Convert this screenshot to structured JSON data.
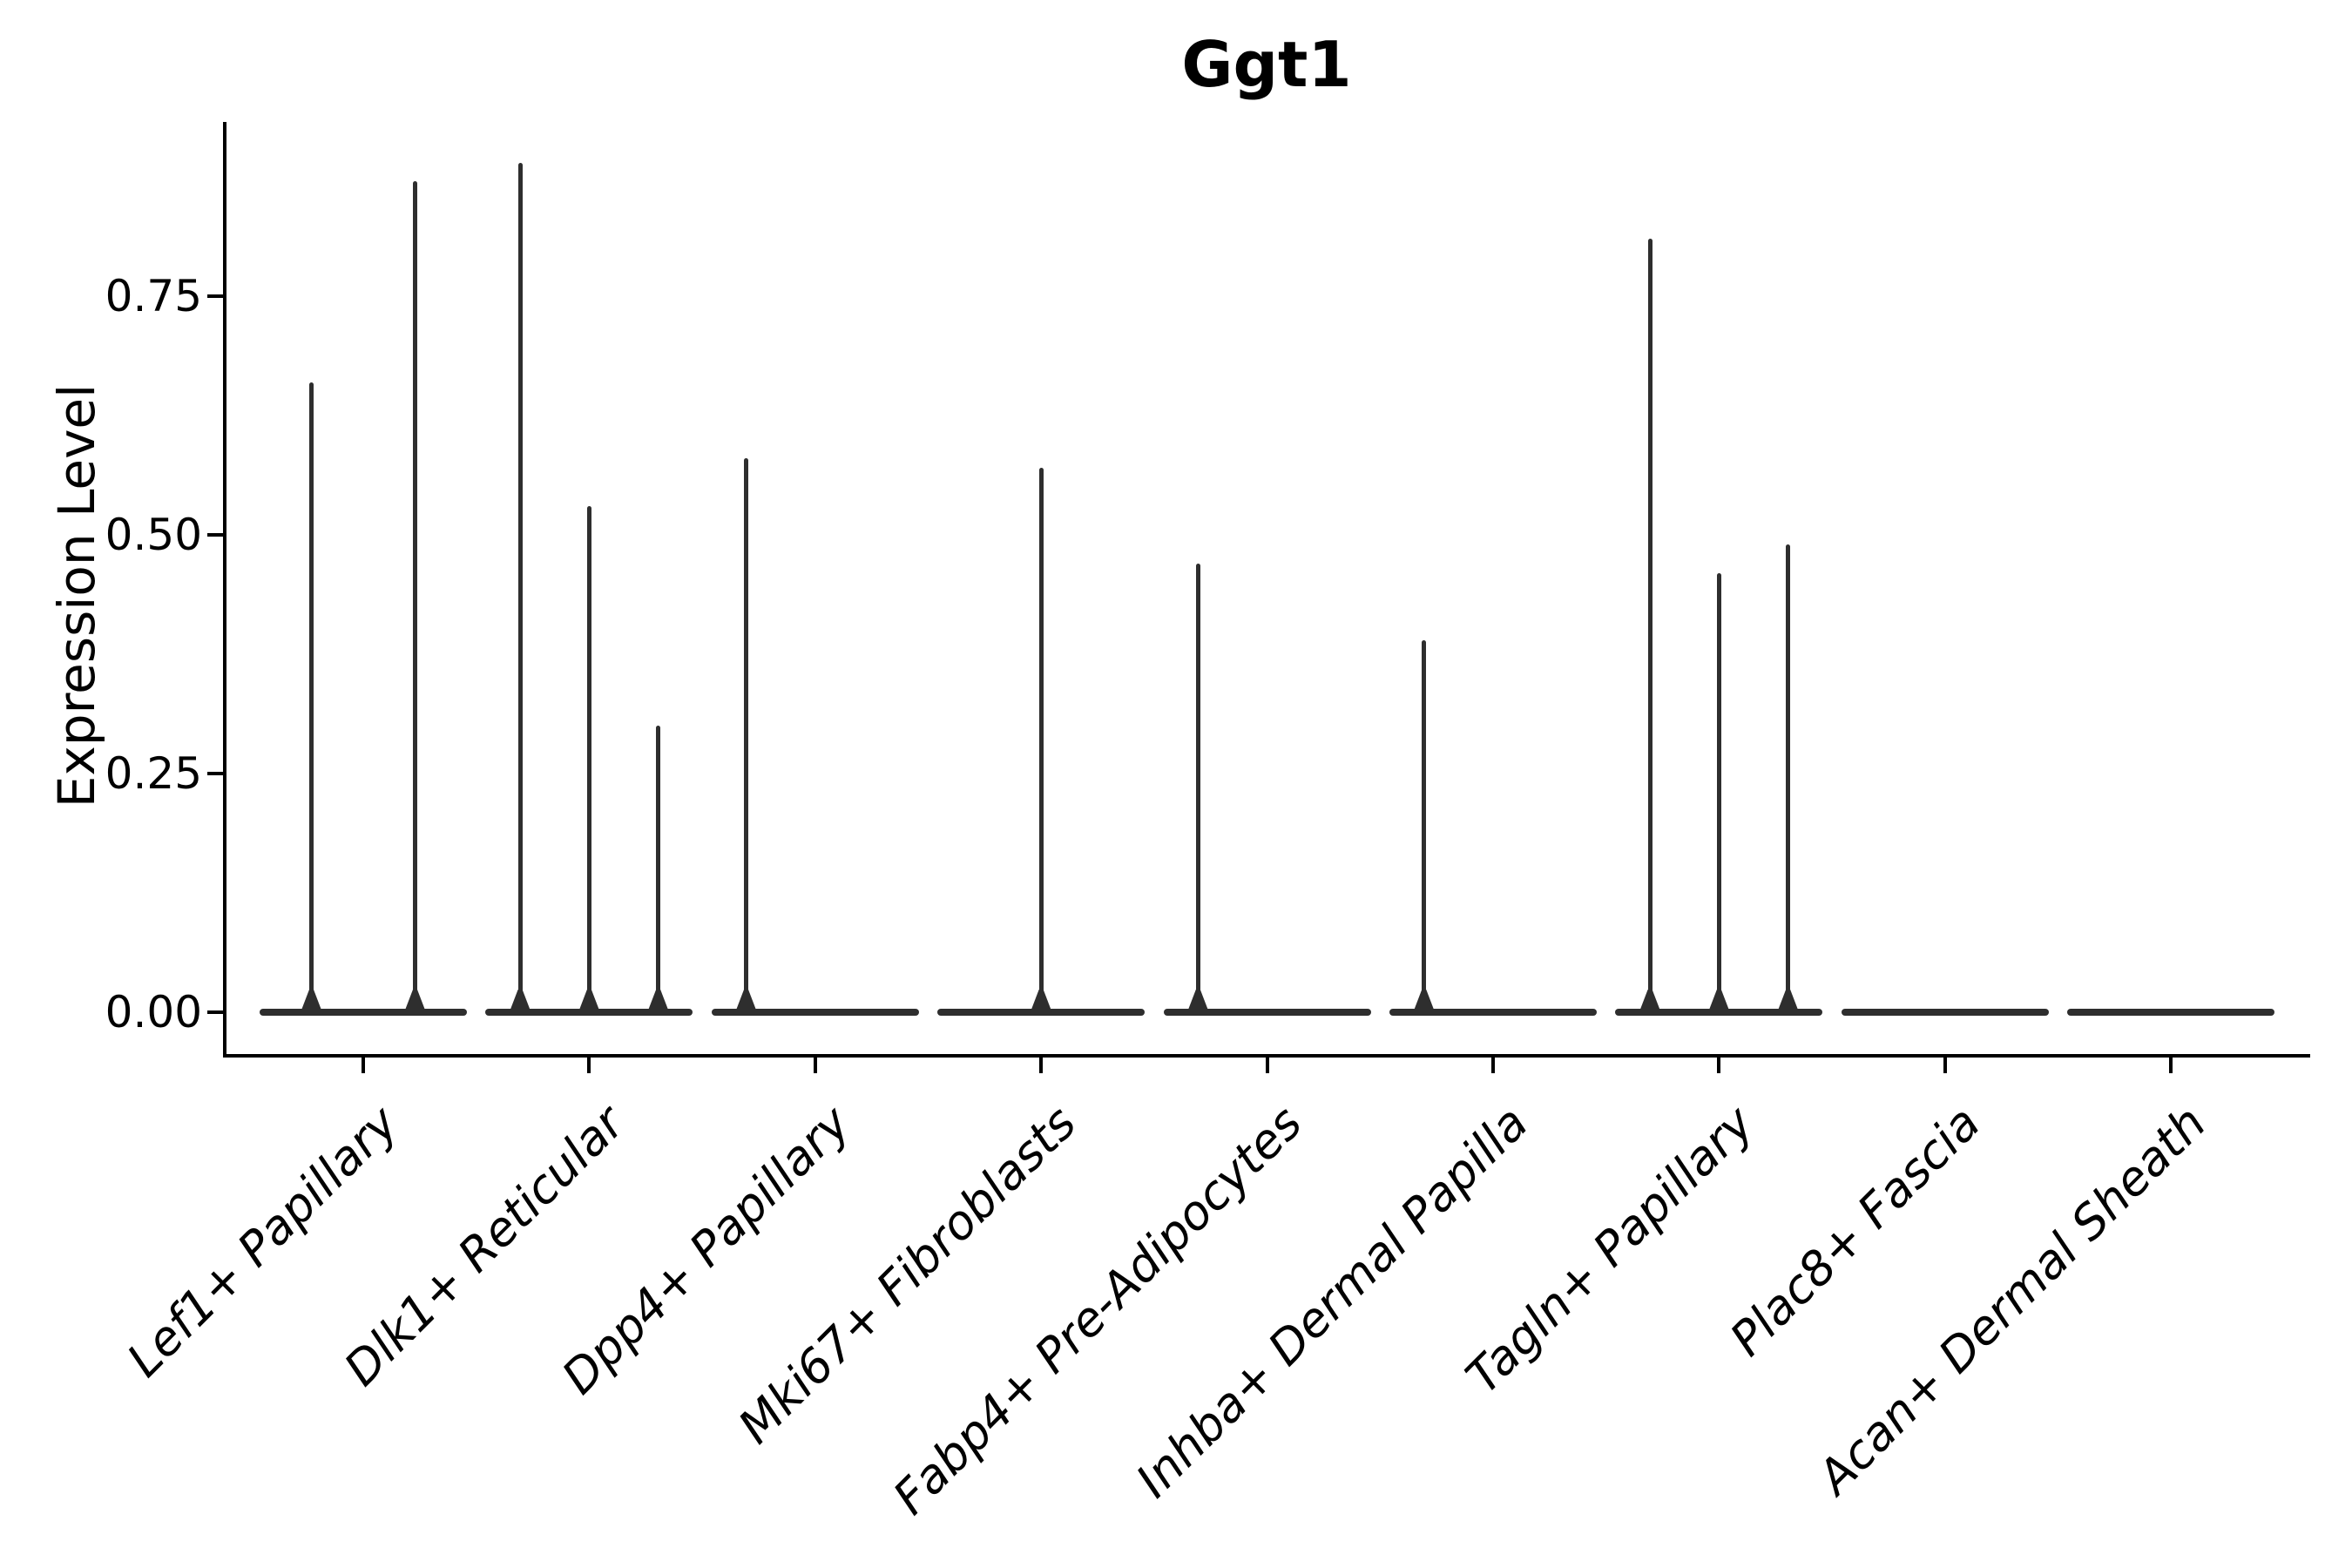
{
  "chart_data": {
    "type": "violin",
    "title": "Ggt1",
    "xlabel": "",
    "ylabel": "Expression Level",
    "y_ticks": [
      {
        "value": 0.0,
        "label": "0.00"
      },
      {
        "value": 0.25,
        "label": "0.25"
      },
      {
        "value": 0.5,
        "label": "0.50"
      },
      {
        "value": 0.75,
        "label": "0.75"
      }
    ],
    "ylim": [
      0,
      0.93
    ],
    "grid": false,
    "legend": "none",
    "categories": [
      "Lef1+ Papillary",
      "Dlk1+ Reticular",
      "Dpp4+ Papillary",
      "Mki67+ Fibroblasts",
      "Fabp4+ Pre-Adipocytes",
      "Inhba+ Dermal Papilla",
      "Tagln+ Papillary",
      "Plac8+ Fascia",
      "Acan+ Dermal Sheath"
    ],
    "violins": [
      {
        "category": "Lef1+ Papillary",
        "baseline_value": 0,
        "spikes": [
          {
            "pos": 0.25,
            "max": 0.66
          },
          {
            "pos": 0.75,
            "max": 0.87
          }
        ]
      },
      {
        "category": "Dlk1+ Reticular",
        "baseline_value": 0,
        "spikes": [
          {
            "pos": 0.167,
            "max": 0.89
          },
          {
            "pos": 0.5,
            "max": 0.53
          },
          {
            "pos": 0.833,
            "max": 0.3
          }
        ]
      },
      {
        "category": "Dpp4+ Papillary",
        "baseline_value": 0,
        "spikes": [
          {
            "pos": 0.167,
            "max": 0.58
          }
        ]
      },
      {
        "category": "Mki67+ Fibroblasts",
        "baseline_value": 0,
        "spikes": [
          {
            "pos": 0.5,
            "max": 0.57
          }
        ]
      },
      {
        "category": "Fabp4+ Pre-Adipocytes",
        "baseline_value": 0,
        "spikes": [
          {
            "pos": 0.167,
            "max": 0.47
          }
        ]
      },
      {
        "category": "Inhba+ Dermal Papilla",
        "baseline_value": 0,
        "spikes": [
          {
            "pos": 0.167,
            "max": 0.39
          }
        ]
      },
      {
        "category": "Tagln+ Papillary",
        "baseline_value": 0,
        "spikes": [
          {
            "pos": 0.167,
            "max": 0.81
          },
          {
            "pos": 0.5,
            "max": 0.46
          },
          {
            "pos": 0.833,
            "max": 0.49
          }
        ]
      },
      {
        "category": "Plac8+ Fascia",
        "baseline_value": 0,
        "spikes": []
      },
      {
        "category": "Acan+ Dermal Sheath",
        "baseline_value": 0,
        "spikes": []
      }
    ],
    "colors": {
      "violin_stroke": "#2e2e2e",
      "axis": "#000000",
      "text": "#000000",
      "background": "#ffffff"
    }
  }
}
